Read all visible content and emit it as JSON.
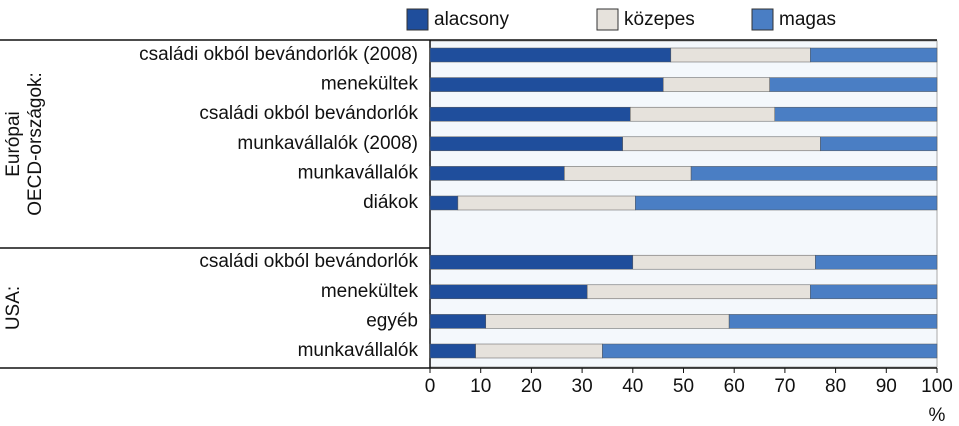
{
  "chart_data": {
    "type": "stacked-bar-horizontal",
    "categories": [
      "családi okból bevándorlók (2008)",
      "menekültek",
      "családi okból bevándorlók",
      "munkavállalók (2008)",
      "munkavállalók",
      "diákok",
      null,
      "családi okból bevándorlók",
      "menekültek",
      "egyéb",
      "munkavállalók"
    ],
    "groups": [
      [
        "Európai",
        "OECD-országok:"
      ],
      [
        "USA:"
      ]
    ],
    "series": [
      {
        "name": "alacsony",
        "color": "#1f4e9c",
        "values": [
          47.5,
          46,
          39.5,
          38,
          26.5,
          5.5,
          null,
          40,
          31,
          11,
          9
        ]
      },
      {
        "name": "közepes",
        "color": "#e6e2dc",
        "values": [
          27.5,
          21,
          28.5,
          39,
          25,
          35,
          null,
          36,
          44,
          48,
          25
        ]
      },
      {
        "name": "magas",
        "color": "#4a7ec4",
        "values": [
          25,
          33,
          32,
          23,
          48.5,
          59.5,
          null,
          24,
          25,
          41,
          66
        ]
      }
    ],
    "xlabel": "%",
    "xlim": [
      0,
      100
    ],
    "xticks": [
      0,
      10,
      20,
      30,
      40,
      50,
      60,
      70,
      80,
      90,
      100
    ]
  }
}
